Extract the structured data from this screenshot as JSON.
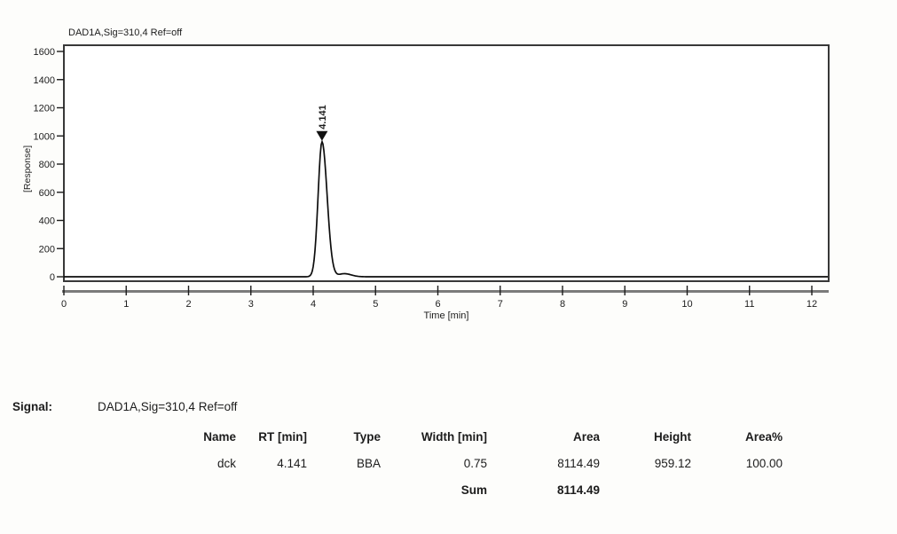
{
  "chart_data": {
    "type": "line",
    "title": "DAD1A,Sig=310,4  Ref=off",
    "xlabel": "Time [min]",
    "ylabel": "[Response]",
    "xlim": [
      0,
      12.27
    ],
    "ylim": [
      0,
      1675
    ],
    "x_ticks": [
      0,
      1,
      2,
      3,
      4,
      5,
      6,
      7,
      8,
      9,
      10,
      11,
      12
    ],
    "y_ticks": [
      0,
      200,
      400,
      600,
      800,
      1000,
      1200,
      1400,
      1600
    ],
    "grid": "off",
    "legend": "none",
    "series": [
      {
        "name": "DAD1A,Sig=310,4 Ref=off",
        "baseline": 0,
        "peaks": [
          {
            "rt": 4.141,
            "height": 959.12,
            "label": "4.141",
            "sigma_left": 0.062,
            "sigma_right": 0.082
          },
          {
            "rt": 4.5,
            "height": 22,
            "label": null,
            "sigma_left": 0.09,
            "sigma_right": 0.11
          }
        ]
      }
    ]
  },
  "signal": {
    "label": "Signal:",
    "value": "DAD1A,Sig=310,4  Ref=off"
  },
  "table": {
    "headers": [
      "Name",
      "RT [min]",
      "Type",
      "Width [min]",
      "Area",
      "Height",
      "Area%"
    ],
    "rows": [
      [
        "dck",
        "4.141",
        "BBA",
        "0.75",
        "8114.49",
        "959.12",
        "100.00"
      ]
    ],
    "sum": {
      "label": "Sum",
      "area": "8114.49"
    }
  },
  "colors": {
    "trace": "#0d0d0d",
    "plot_border": "#383838",
    "plot_bg": "#ffffff",
    "axis_ruler": "#7b7b7b",
    "text": "#1c1c1c",
    "page_bg": "#fdfdfb",
    "peak_marker": "#111111"
  }
}
